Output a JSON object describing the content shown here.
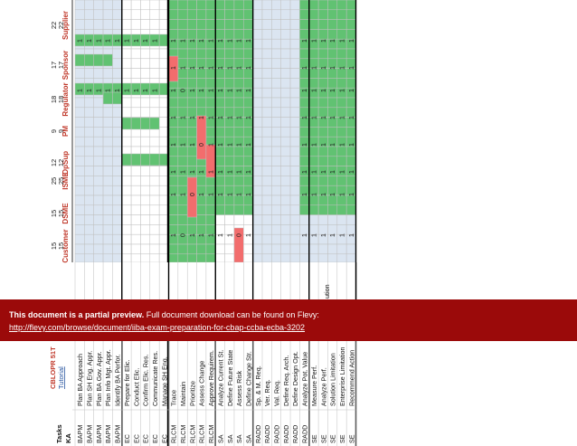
{
  "colors": {
    "green": "#61c272",
    "red": "#f26d6d",
    "blue": "#dbe5f1",
    "grid": "#bfbfbf",
    "thick": "#000000",
    "header_red": "#c0392b",
    "header_blue": "#1f4e9c",
    "banner": "#9b0a0a"
  },
  "sheet": {
    "title": "CBLOPR 51T",
    "tutorial_link": "Tutorial",
    "header_ka": "KA",
    "header_tasks": "Tasks",
    "column_groups": [
      {
        "name": "Customer",
        "top": "",
        "mid": ""
      },
      {
        "name": "DSME",
        "top": "15",
        "mid": "15"
      },
      {
        "name": "ISME",
        "top": "25",
        "mid": "25"
      },
      {
        "name": "OpSup",
        "top": "12",
        "mid": "12"
      },
      {
        "name": "PM",
        "top": "9",
        "mid": "9"
      },
      {
        "name": "Regulator",
        "top": "18",
        "mid": "18"
      },
      {
        "name": "Sponsor",
        "top": "17",
        "mid": "17"
      },
      {
        "name": "Supplier",
        "top": "22",
        "mid": "22"
      }
    ],
    "rows": [
      {
        "ka": "BAPM",
        "task": "Plan BA Approach",
        "cells": [
          "B",
          "B",
          "B",
          "B",
          "B",
          "W",
          "W",
          "W",
          "W",
          "G",
          "W",
          "W",
          "W",
          "W",
          "W",
          "W",
          "W",
          "W",
          "W",
          "W",
          "G",
          "G",
          "G",
          "G",
          "G",
          "G",
          "G",
          "G",
          "G",
          "G",
          "G"
        ],
        "vals": [
          "",
          "",
          "",
          "",
          "",
          "",
          "",
          "",
          "",
          "1",
          "",
          "",
          "",
          "",
          "",
          "",
          "",
          "",
          "",
          "",
          "1",
          "1",
          "1",
          "1",
          "1",
          "1",
          "1",
          "1",
          "1",
          "1",
          "1"
        ]
      },
      {
        "ka": "BAPM",
        "task": "Plan SH Eng. Appr.",
        "cells": [
          "B",
          "B",
          "B",
          "B",
          "B",
          "W",
          "W",
          "W",
          "W",
          "G",
          "W",
          "W",
          "W",
          "W",
          "W",
          "W",
          "W",
          "W",
          "W",
          "W",
          "G",
          "G",
          "G",
          "G",
          "G",
          "G",
          "G",
          "G",
          "G",
          "G",
          "G"
        ],
        "vals": [
          "",
          "",
          "",
          "",
          "",
          "",
          "",
          "",
          "",
          "",
          "",
          "",
          "",
          "",
          "",
          "",
          "",
          "",
          "",
          "",
          "1",
          "1",
          "1",
          "1",
          "1",
          "1",
          "1",
          "1",
          "1",
          "1",
          "1"
        ]
      },
      {
        "ka": "BAPM",
        "task": "Plan BA Gov. Appr.",
        "cells": [
          "B",
          "B",
          "B",
          "B",
          "B",
          "W",
          "W",
          "W",
          "W",
          "G",
          "W",
          "W",
          "W",
          "W",
          "W",
          "W",
          "W",
          "W",
          "W",
          "W",
          "G",
          "G",
          "G",
          "G",
          "G",
          "G",
          "G",
          "G",
          "G",
          "G",
          "G"
        ],
        "vals": [
          "",
          "",
          "",
          "",
          "",
          "",
          "",
          "",
          "",
          "",
          "",
          "",
          "",
          "",
          "",
          "",
          "",
          "",
          "",
          "",
          "1",
          "1",
          "1",
          "1",
          "1",
          "1",
          "1",
          "1",
          "1",
          "1",
          "1"
        ]
      },
      {
        "ka": "BAPM",
        "task": "Plan Info Mgt. Appr.",
        "cells": [
          "B",
          "B",
          "B",
          "B",
          "B",
          "W",
          "W",
          "W",
          "W",
          "G",
          "W",
          "W",
          "W",
          "W",
          "W",
          "W",
          "W",
          "W",
          "W",
          "W",
          "G",
          "G",
          "G",
          "G",
          "G",
          "G",
          "G",
          "G",
          "G",
          "G",
          "G"
        ],
        "vals": [
          "",
          "",
          "",
          "",
          "",
          "",
          "",
          "",
          "",
          "",
          "",
          "",
          "",
          "",
          "",
          "",
          "",
          "",
          "",
          "",
          "1",
          "1",
          "1",
          "1",
          "1",
          "1",
          "1",
          "1",
          "1",
          "1",
          "1"
        ]
      },
      {
        "ka": "BAPM",
        "task": "Identify BA Perfor.",
        "cells": [
          "B",
          "B",
          "B",
          "B",
          "B",
          "W",
          "W",
          "W",
          "W",
          "G",
          "W",
          "W",
          "W",
          "W",
          "W",
          "W",
          "W",
          "W",
          "W",
          "W",
          "G",
          "G",
          "G",
          "G",
          "G",
          "G",
          "G",
          "G",
          "G",
          "G",
          "G"
        ],
        "vals": [
          "",
          "",
          "",
          "",
          "",
          "",
          "",
          "",
          "",
          "",
          "",
          "",
          "",
          "",
          "",
          "",
          "",
          "",
          "",
          "",
          "1",
          "1",
          "1",
          "1",
          "1",
          "1",
          "1",
          "1",
          "1",
          "1",
          "1"
        ]
      }
    ]
  },
  "banner": {
    "bold_text": "This document is a partial preview.",
    "normal_text": "Full document download can be found on Flevy:",
    "link_text": "http://flevy.com/browse/document/iiba-exam-preparation-for-cbap-ccba-ecba-3202"
  },
  "rotated_rows": [
    {
      "ka": "BAPM",
      "task": "Plan BA Approach",
      "pattern": "BBBBBBBBBBBBBBGGGGGGG GGGGGGGGG G"
    },
    {
      "ka": "BAPM",
      "task": "Plan SH Eng. Appr."
    },
    {
      "ka": "BAPM",
      "task": "Plan BA Gov. Appr."
    },
    {
      "ka": "BAPM",
      "task": "Plan Info Mgt. Appr."
    },
    {
      "ka": "BAPM",
      "task": "Identify BA Perfor."
    },
    {
      "ka": "EC",
      "task": "Prepare for Elic."
    },
    {
      "ka": "EC",
      "task": "Conduct Elic."
    },
    {
      "ka": "EC",
      "task": "Confirm Elic. Res."
    },
    {
      "ka": "EC",
      "task": "Communicate Res."
    },
    {
      "ka": "EC",
      "task": "Manage SH Eng."
    },
    {
      "ka": "RLCM",
      "task": "Trace"
    },
    {
      "ka": "RLCM",
      "task": "Maintain"
    },
    {
      "ka": "RLCM",
      "task": "Prioritize"
    },
    {
      "ka": "RLCM",
      "task": "Assess Change"
    },
    {
      "ka": "RLCM",
      "task": "Approve Requirem."
    },
    {
      "ka": "SA",
      "task": "Analyze Current St."
    },
    {
      "ka": "SA",
      "task": "Define Future State"
    },
    {
      "ka": "SA",
      "task": "Assess Risk"
    },
    {
      "ka": "SA",
      "task": "Define Change Str."
    },
    {
      "ka": "RADD",
      "task": "Sp. & M. Req."
    },
    {
      "ka": "RADD",
      "task": "Ver. Req."
    },
    {
      "ka": "RADD",
      "task": "Val. Req."
    },
    {
      "ka": "RADD",
      "task": "Define Req. Arch."
    },
    {
      "ka": "RADD",
      "task": "Define Design Opt."
    },
    {
      "ka": "RADD",
      "task": "Analyze Pot. Value"
    },
    {
      "ka": "SE",
      "task": "Measure Perf."
    },
    {
      "ka": "SE",
      "task": "Analyze Perf."
    },
    {
      "ka": "SE",
      "task": "Solution Limitation"
    },
    {
      "ka": "SE",
      "task": "Enterprise Limitation"
    },
    {
      "ka": "SE",
      "task": "Recommend Action"
    }
  ],
  "stakeholders": [
    {
      "name": "Customer",
      "n1": "15",
      "n2": "15"
    },
    {
      "name": "DSME",
      "n1": "15",
      "n2": "15"
    },
    {
      "name": "ISME",
      "n1": "25",
      "n2": "25"
    },
    {
      "name": "OpSup",
      "n1": "12",
      "n2": "12"
    },
    {
      "name": "PM",
      "n1": "9",
      "n2": "9"
    },
    {
      "name": "Regulator",
      "n1": "18",
      "n2": "18"
    },
    {
      "name": "Sponsor",
      "n1": "17",
      "n2": "17"
    },
    {
      "name": "Supplier",
      "n1": "22",
      "n2": "22"
    }
  ],
  "visible_tail": "ution"
}
